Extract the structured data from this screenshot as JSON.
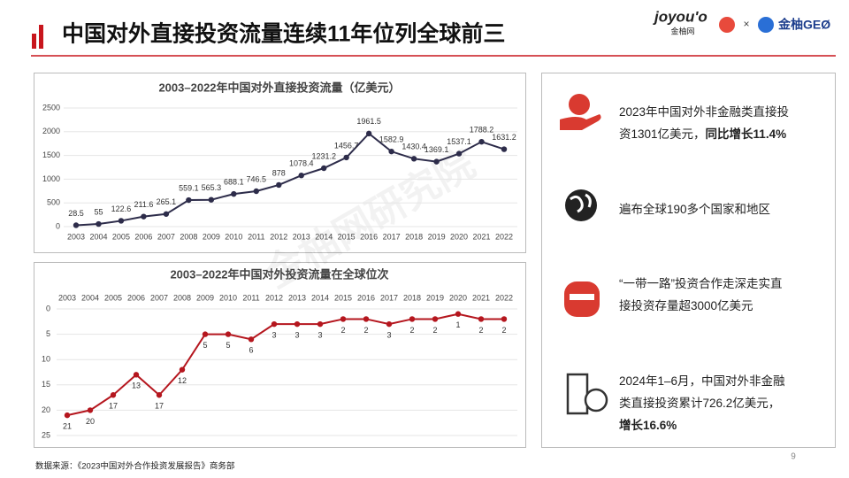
{
  "header": {
    "title": "中国对外直接投资流量连续11年位列全球前三",
    "logo": [
      "joyou'o",
      "金柚网",
      "×",
      "金柚GEØ"
    ]
  },
  "chart_data": [
    {
      "type": "line",
      "title": "2003–2022年中国对外直接投资流量（亿美元）",
      "color": "#2d2c4a",
      "categories": [
        "2003",
        "2004",
        "2005",
        "2006",
        "2007",
        "2008",
        "2009",
        "2010",
        "2011",
        "2012",
        "2013",
        "2014",
        "2015",
        "2016",
        "2017",
        "2018",
        "2019",
        "2020",
        "2021",
        "2022"
      ],
      "values": [
        28.5,
        55,
        122.6,
        211.6,
        265.1,
        559.1,
        565.3,
        688.1,
        746.5,
        878,
        1078.4,
        1231.2,
        1456.7,
        1961.5,
        1582.9,
        1430.4,
        1369.1,
        1537.1,
        1788.2,
        1631.2
      ],
      "ylim": [
        0,
        2500
      ],
      "yticks": [
        0,
        500,
        1000,
        1500,
        2000,
        2500
      ],
      "grid": true,
      "data_labels": true
    },
    {
      "type": "line",
      "title": "2003–2022年中国对外投资流量在全球位次",
      "color": "#b5161e",
      "categories": [
        "2003",
        "2004",
        "2005",
        "2006",
        "2007",
        "2008",
        "2009",
        "2010",
        "2011",
        "2012",
        "2013",
        "2014",
        "2015",
        "2016",
        "2017",
        "2018",
        "2019",
        "2020",
        "2021",
        "2022"
      ],
      "values": [
        21,
        20,
        17,
        13,
        17,
        12,
        5,
        5,
        6,
        3,
        3,
        3,
        2,
        2,
        3,
        2,
        2,
        1,
        2,
        2
      ],
      "ylim": [
        25,
        0
      ],
      "yticks": [
        0,
        5,
        10,
        15,
        20,
        25
      ],
      "grid": true,
      "data_labels": true
    }
  ],
  "items": [
    {
      "text": "2023年中国对外非金融类直接投资1301亿美元，",
      "bold": "同比增长11.4%"
    },
    {
      "text": "遍布全球190多个国家和地区"
    },
    {
      "text": "“一带一路”投资合作走深走实直接投资存量超3000亿美元"
    },
    {
      "text": "2024年1–6月，中国对外非金融类直接投资累计726.2亿美元，",
      "bold": "增长16.6%"
    }
  ],
  "watermark": "金柚网研究院",
  "source": "数据来源：《2023中国对外合作投资发展报告》商务部",
  "page": "9"
}
